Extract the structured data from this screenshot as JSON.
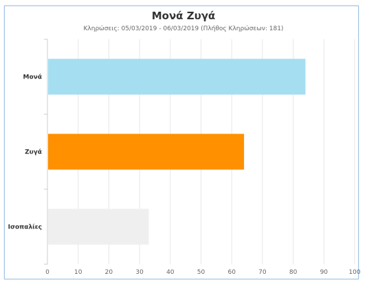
{
  "chart_data": {
    "type": "bar",
    "orientation": "horizontal",
    "title": "Μονά Ζυγά",
    "subtitle": "Κληρώσεις: 05/03/2019 - 06/03/2019 (Πλήθος Κληρώσεων: 181)",
    "categories": [
      "Μονά",
      "Ζυγά",
      "Ισοπαλίες"
    ],
    "values": [
      84,
      64,
      33
    ],
    "colors": [
      "#a5def1",
      "#ff9000",
      "#efefef"
    ],
    "xlim": [
      0,
      100
    ],
    "xticks": [
      0,
      10,
      20,
      30,
      40,
      50,
      60,
      70,
      80,
      90,
      100
    ],
    "grid": true,
    "legend": "none"
  }
}
